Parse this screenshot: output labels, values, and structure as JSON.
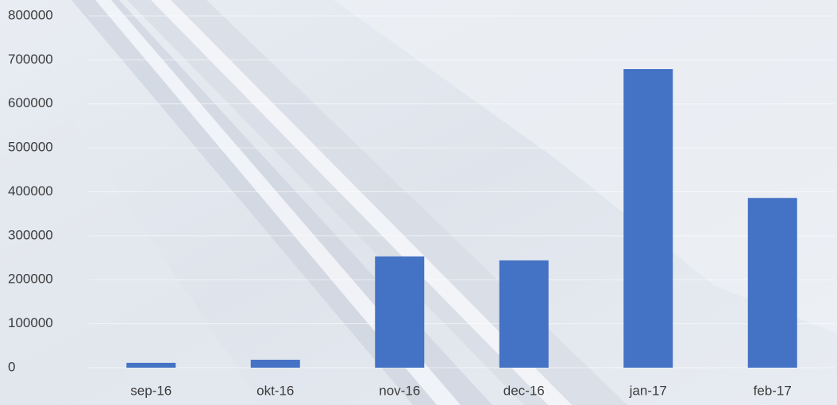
{
  "chart_data": {
    "type": "bar",
    "categories": [
      "sep-16",
      "okt-16",
      "nov-16",
      "dec-16",
      "jan-17",
      "feb-17"
    ],
    "values": [
      11000,
      18000,
      253000,
      244000,
      679000,
      386000
    ],
    "color": "#4472c4",
    "ylim": [
      0,
      800000
    ],
    "yticks": [
      0,
      100000,
      200000,
      300000,
      400000,
      500000,
      600000,
      700000,
      800000
    ],
    "grid": true
  }
}
